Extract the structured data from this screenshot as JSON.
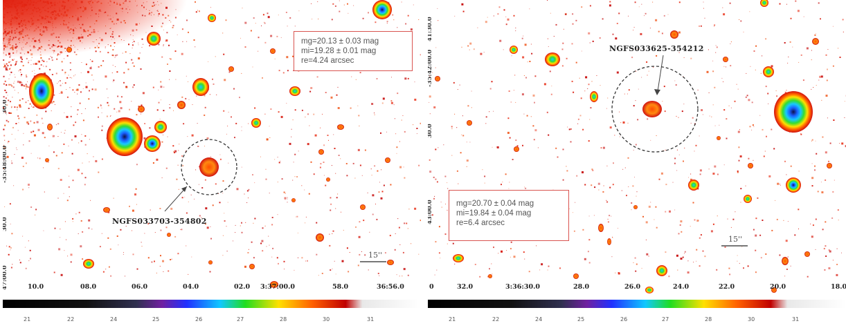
{
  "panels": [
    {
      "id": "left",
      "mag": {
        "g": "mg=20.13 ± 0.03 mag",
        "i": "mi=19.28 ± 0.01 mag",
        "re": "re=4.24 arcsec"
      },
      "object": "NGFS033703-354802",
      "scale": "15''",
      "ra_ticks": [
        "10.0",
        "08.0",
        "06.0",
        "04.0",
        "02.0",
        "3:37:00.0",
        "58.0",
        "36:56.0"
      ],
      "dec_ticks": [
        "30.0",
        "-35:48:00.0",
        "30.0",
        "47:00.0"
      ],
      "colorbar_ticks": [
        "21",
        "22",
        "24",
        "25",
        "26",
        "27",
        "28",
        "30",
        "31"
      ]
    },
    {
      "id": "right",
      "mag": {
        "g": "mg=20.70 ± 0.04 mag",
        "i": "mi=19.84 ± 0.04 mag",
        "re": "re=6.4 arcsec"
      },
      "object": "NGFS033625-354212",
      "scale": "15''",
      "ra_ticks": [
        "0",
        "32.0",
        "3:36:30.0",
        "28.0",
        "26.0",
        "24.0",
        "22.0",
        "20.0",
        "18.0"
      ],
      "dec_ticks": [
        "41:30.0",
        "-35:42:00.0",
        "30.0",
        "43:00.0"
      ],
      "colorbar_ticks": [
        "21",
        "22",
        "24",
        "25",
        "26",
        "27",
        "28",
        "30",
        "31"
      ]
    }
  ]
}
